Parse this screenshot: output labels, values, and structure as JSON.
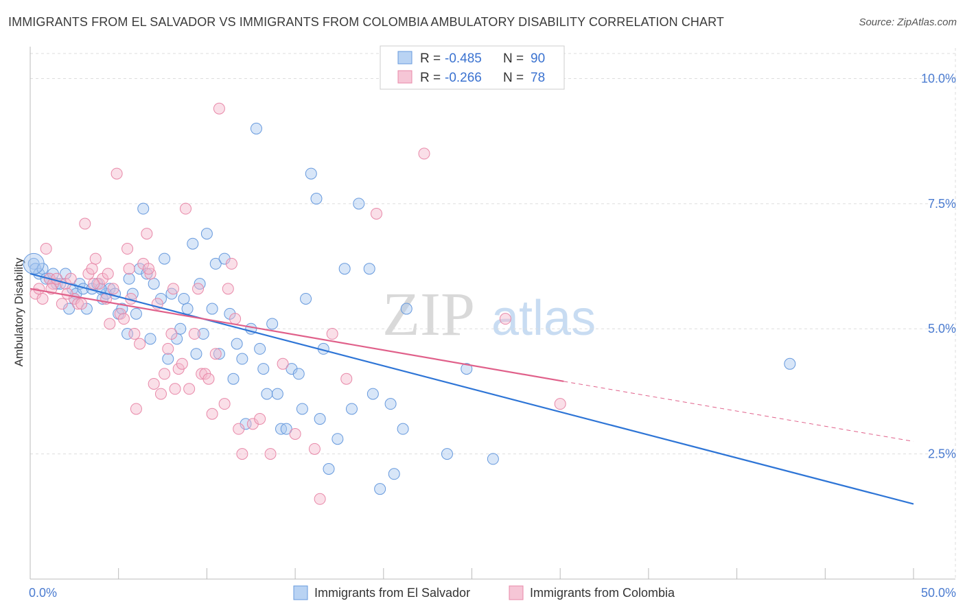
{
  "title": "IMMIGRANTS FROM EL SALVADOR VS IMMIGRANTS FROM COLOMBIA AMBULATORY DISABILITY CORRELATION CHART",
  "source": "Source: ZipAtlas.com",
  "watermark": {
    "zip": "ZIP",
    "atlas": "atlas"
  },
  "chart_data": {
    "type": "scatter",
    "title": "IMMIGRANTS FROM EL SALVADOR VS IMMIGRANTS FROM COLOMBIA AMBULATORY DISABILITY CORRELATION CHART",
    "xlabel": "",
    "ylabel": "Ambulatory Disability",
    "xlim": [
      0,
      50
    ],
    "ylim": [
      0,
      10.5
    ],
    "x_tick_labels": [
      {
        "value": 0,
        "label": "0.0%"
      },
      {
        "value": 50,
        "label": "50.0%"
      }
    ],
    "y_tick_labels": [
      {
        "value": 2.5,
        "label": "2.5%"
      },
      {
        "value": 5.0,
        "label": "5.0%"
      },
      {
        "value": 7.5,
        "label": "7.5%"
      },
      {
        "value": 10.0,
        "label": "10.0%"
      }
    ],
    "grid": true,
    "legend_position": "top-center",
    "series": [
      {
        "name": "Immigrants from El Salvador",
        "color": "#6699dd",
        "fill": "#a8c8f0",
        "line_color": "#2e75d6",
        "R": "-0.485",
        "N": "90",
        "trend": {
          "x": [
            0,
            50
          ],
          "y": [
            6.1,
            1.5
          ]
        },
        "points": [
          [
            0.2,
            6.3
          ],
          [
            0.3,
            6.2
          ],
          [
            0.5,
            6.1
          ],
          [
            0.7,
            6.2
          ],
          [
            0.9,
            6.0
          ],
          [
            1.1,
            6.0
          ],
          [
            1.3,
            6.1
          ],
          [
            1.5,
            5.9
          ],
          [
            1.7,
            5.9
          ],
          [
            2.0,
            6.1
          ],
          [
            2.2,
            5.4
          ],
          [
            2.4,
            5.8
          ],
          [
            2.6,
            5.7
          ],
          [
            2.8,
            5.9
          ],
          [
            3.0,
            5.8
          ],
          [
            3.2,
            5.4
          ],
          [
            3.5,
            5.8
          ],
          [
            3.8,
            5.9
          ],
          [
            4.1,
            5.6
          ],
          [
            4.3,
            5.7
          ],
          [
            4.5,
            5.8
          ],
          [
            4.8,
            5.7
          ],
          [
            5.0,
            5.3
          ],
          [
            5.2,
            5.4
          ],
          [
            5.5,
            4.9
          ],
          [
            5.6,
            6.0
          ],
          [
            5.8,
            5.7
          ],
          [
            6.0,
            5.3
          ],
          [
            6.2,
            6.2
          ],
          [
            6.4,
            7.4
          ],
          [
            6.6,
            6.1
          ],
          [
            6.8,
            4.8
          ],
          [
            7.0,
            5.9
          ],
          [
            7.4,
            5.6
          ],
          [
            7.6,
            6.4
          ],
          [
            7.8,
            4.4
          ],
          [
            8.0,
            5.7
          ],
          [
            8.3,
            4.8
          ],
          [
            8.5,
            5.0
          ],
          [
            8.7,
            5.6
          ],
          [
            8.9,
            5.4
          ],
          [
            9.2,
            6.7
          ],
          [
            9.4,
            4.5
          ],
          [
            9.6,
            5.9
          ],
          [
            9.8,
            4.9
          ],
          [
            10.0,
            6.9
          ],
          [
            10.3,
            5.4
          ],
          [
            10.5,
            6.3
          ],
          [
            10.7,
            4.5
          ],
          [
            11.0,
            6.4
          ],
          [
            11.3,
            5.3
          ],
          [
            11.5,
            4.0
          ],
          [
            11.7,
            4.7
          ],
          [
            12.0,
            4.4
          ],
          [
            12.2,
            3.1
          ],
          [
            12.5,
            5.0
          ],
          [
            12.8,
            9.0
          ],
          [
            13.0,
            4.6
          ],
          [
            13.2,
            4.2
          ],
          [
            13.4,
            3.7
          ],
          [
            13.7,
            5.1
          ],
          [
            14.0,
            3.7
          ],
          [
            14.2,
            3.0
          ],
          [
            14.5,
            3.0
          ],
          [
            14.8,
            4.2
          ],
          [
            15.2,
            4.1
          ],
          [
            15.4,
            3.4
          ],
          [
            15.6,
            5.6
          ],
          [
            15.9,
            8.1
          ],
          [
            16.2,
            7.6
          ],
          [
            16.4,
            3.2
          ],
          [
            16.6,
            4.6
          ],
          [
            16.9,
            2.2
          ],
          [
            17.4,
            2.8
          ],
          [
            17.8,
            6.2
          ],
          [
            18.2,
            3.4
          ],
          [
            18.6,
            7.5
          ],
          [
            19.2,
            6.2
          ],
          [
            19.4,
            3.7
          ],
          [
            19.8,
            1.8
          ],
          [
            20.4,
            3.5
          ],
          [
            20.6,
            2.1
          ],
          [
            21.1,
            3.0
          ],
          [
            21.3,
            5.4
          ],
          [
            23.6,
            2.5
          ],
          [
            24.7,
            4.2
          ],
          [
            26.2,
            2.4
          ],
          [
            43.0,
            4.3
          ],
          [
            4.0,
            5.8
          ],
          [
            2.5,
            5.6
          ]
        ]
      },
      {
        "name": "Immigrants from Colombia",
        "color": "#e888a8",
        "fill": "#f4b8cc",
        "line_color": "#e0608a",
        "R": "-0.266",
        "N": "78",
        "trend": {
          "x": [
            0,
            30.2
          ],
          "y": [
            5.8,
            3.95
          ]
        },
        "trend_dashed": {
          "x": [
            30.2,
            50
          ],
          "y": [
            3.95,
            2.75
          ]
        },
        "points": [
          [
            0.3,
            5.7
          ],
          [
            0.5,
            5.8
          ],
          [
            0.7,
            5.6
          ],
          [
            0.9,
            6.6
          ],
          [
            1.1,
            6.0
          ],
          [
            1.3,
            5.9
          ],
          [
            1.5,
            6.0
          ],
          [
            1.8,
            5.5
          ],
          [
            2.0,
            5.9
          ],
          [
            2.3,
            6.0
          ],
          [
            2.5,
            5.6
          ],
          [
            2.7,
            5.5
          ],
          [
            2.9,
            5.5
          ],
          [
            3.1,
            7.1
          ],
          [
            3.3,
            6.1
          ],
          [
            3.5,
            6.2
          ],
          [
            3.7,
            6.4
          ],
          [
            3.9,
            5.9
          ],
          [
            4.1,
            6.0
          ],
          [
            4.3,
            5.6
          ],
          [
            4.5,
            5.1
          ],
          [
            4.7,
            5.8
          ],
          [
            4.9,
            8.1
          ],
          [
            5.1,
            5.3
          ],
          [
            5.3,
            5.2
          ],
          [
            5.5,
            6.6
          ],
          [
            5.7,
            5.6
          ],
          [
            5.9,
            4.9
          ],
          [
            6.0,
            3.4
          ],
          [
            6.2,
            4.7
          ],
          [
            6.4,
            6.3
          ],
          [
            6.6,
            6.9
          ],
          [
            6.8,
            6.1
          ],
          [
            7.0,
            3.9
          ],
          [
            7.2,
            5.5
          ],
          [
            7.4,
            3.7
          ],
          [
            7.6,
            4.1
          ],
          [
            7.8,
            4.6
          ],
          [
            8.0,
            4.9
          ],
          [
            8.2,
            3.8
          ],
          [
            8.4,
            4.2
          ],
          [
            8.6,
            4.3
          ],
          [
            8.8,
            7.4
          ],
          [
            9.0,
            3.8
          ],
          [
            9.3,
            4.9
          ],
          [
            9.5,
            5.8
          ],
          [
            9.7,
            4.1
          ],
          [
            9.9,
            4.1
          ],
          [
            10.1,
            4.0
          ],
          [
            10.3,
            3.3
          ],
          [
            10.5,
            4.5
          ],
          [
            10.7,
            9.4
          ],
          [
            11.0,
            3.5
          ],
          [
            11.2,
            5.8
          ],
          [
            11.4,
            6.3
          ],
          [
            11.6,
            5.2
          ],
          [
            11.8,
            3.0
          ],
          [
            12.0,
            2.5
          ],
          [
            12.6,
            3.1
          ],
          [
            13.0,
            3.2
          ],
          [
            13.6,
            2.5
          ],
          [
            14.3,
            4.3
          ],
          [
            15.0,
            2.9
          ],
          [
            16.1,
            2.6
          ],
          [
            16.4,
            1.6
          ],
          [
            17.1,
            4.9
          ],
          [
            17.9,
            4.0
          ],
          [
            19.6,
            7.3
          ],
          [
            22.3,
            8.5
          ],
          [
            26.9,
            5.2
          ],
          [
            30.0,
            3.5
          ],
          [
            1.2,
            5.8
          ],
          [
            2.1,
            5.7
          ],
          [
            3.6,
            5.9
          ],
          [
            4.4,
            6.1
          ],
          [
            5.6,
            6.2
          ],
          [
            6.7,
            6.2
          ],
          [
            8.1,
            5.8
          ]
        ]
      }
    ]
  }
}
